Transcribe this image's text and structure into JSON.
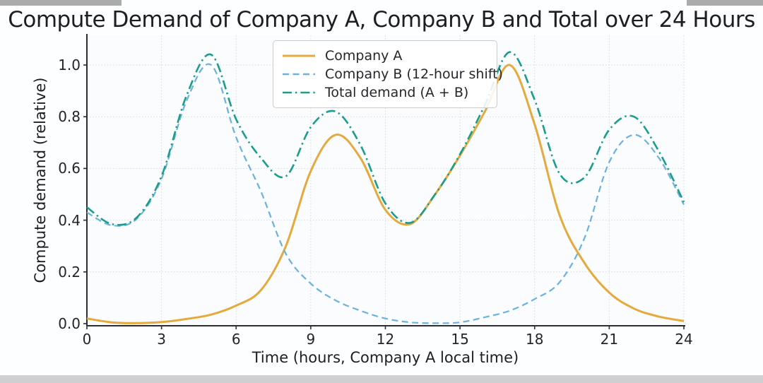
{
  "title": "Compute Demand of Company A, Company B and Total over 24 Hours",
  "chart_data": {
    "type": "line",
    "title": "Compute Demand of Company A, Company B and Total over 24 Hours",
    "xlabel": "Time (hours, Company A local time)",
    "ylabel": "Compute demand (relative)",
    "xlim": [
      0,
      24
    ],
    "ylim": [
      0,
      1.115
    ],
    "grid": true,
    "grid_style": "dotted light gray",
    "legend_position": "upper center-left",
    "background_color": "#fdfeff",
    "spine_color": "#2c2c32",
    "x_ticks": [
      0,
      3,
      6,
      9,
      12,
      15,
      18,
      21,
      24
    ],
    "x_tick_labels": [
      "0",
      "3",
      "6",
      "9",
      "12",
      "15",
      "18",
      "21",
      "24"
    ],
    "y_ticks": [
      0.0,
      0.2,
      0.4,
      0.6,
      0.8,
      1.0
    ],
    "y_tick_labels": [
      "0.0",
      "0.2",
      "0.4",
      "0.6",
      "0.8",
      "1.0"
    ],
    "x": [
      0,
      1,
      2,
      3,
      4,
      5,
      6,
      7,
      8,
      9,
      10,
      11,
      12,
      13,
      14,
      15,
      16,
      17,
      18,
      19,
      20,
      21,
      22,
      23,
      24
    ],
    "series": [
      {
        "name": "Company A",
        "color": "#E5A93C",
        "style": "solid",
        "width": 3,
        "values": [
          0.02,
          0.005,
          0.002,
          0.006,
          0.018,
          0.035,
          0.07,
          0.13,
          0.3,
          0.59,
          0.73,
          0.64,
          0.44,
          0.385,
          0.5,
          0.65,
          0.82,
          1.0,
          0.77,
          0.42,
          0.235,
          0.12,
          0.058,
          0.027,
          0.01
        ]
      },
      {
        "name": "Company B (12-hour shift)",
        "color": "#6CB2DC",
        "style": "dashed",
        "width": 2.2,
        "values": [
          0.43,
          0.38,
          0.405,
          0.56,
          0.86,
          1.0,
          0.72,
          0.51,
          0.27,
          0.155,
          0.09,
          0.05,
          0.02,
          0.005,
          0.002,
          0.005,
          0.025,
          0.05,
          0.095,
          0.16,
          0.33,
          0.625,
          0.73,
          0.64,
          0.46
        ]
      },
      {
        "name": "Total demand (A + B)",
        "color": "#1B9D8B",
        "style": "dashdot",
        "width": 2.6,
        "values": [
          0.45,
          0.385,
          0.41,
          0.57,
          0.88,
          1.04,
          0.79,
          0.64,
          0.57,
          0.76,
          0.82,
          0.69,
          0.465,
          0.39,
          0.5,
          0.655,
          0.845,
          1.05,
          0.865,
          0.58,
          0.565,
          0.75,
          0.8,
          0.665,
          0.47
        ]
      }
    ],
    "notable_points": {
      "company_a_peaks": [
        [
          10,
          0.73
        ],
        [
          17,
          1.0
        ]
      ],
      "company_b_peaks": [
        [
          5,
          1.0
        ],
        [
          22,
          0.73
        ]
      ],
      "total_peaks": [
        [
          5,
          1.05
        ],
        [
          10,
          0.82
        ],
        [
          17,
          1.05
        ],
        [
          22,
          0.82
        ]
      ],
      "total_minima": [
        [
          1.3,
          0.385
        ],
        [
          7.7,
          0.56
        ],
        [
          13,
          0.39
        ],
        [
          19.7,
          0.555
        ]
      ]
    }
  }
}
